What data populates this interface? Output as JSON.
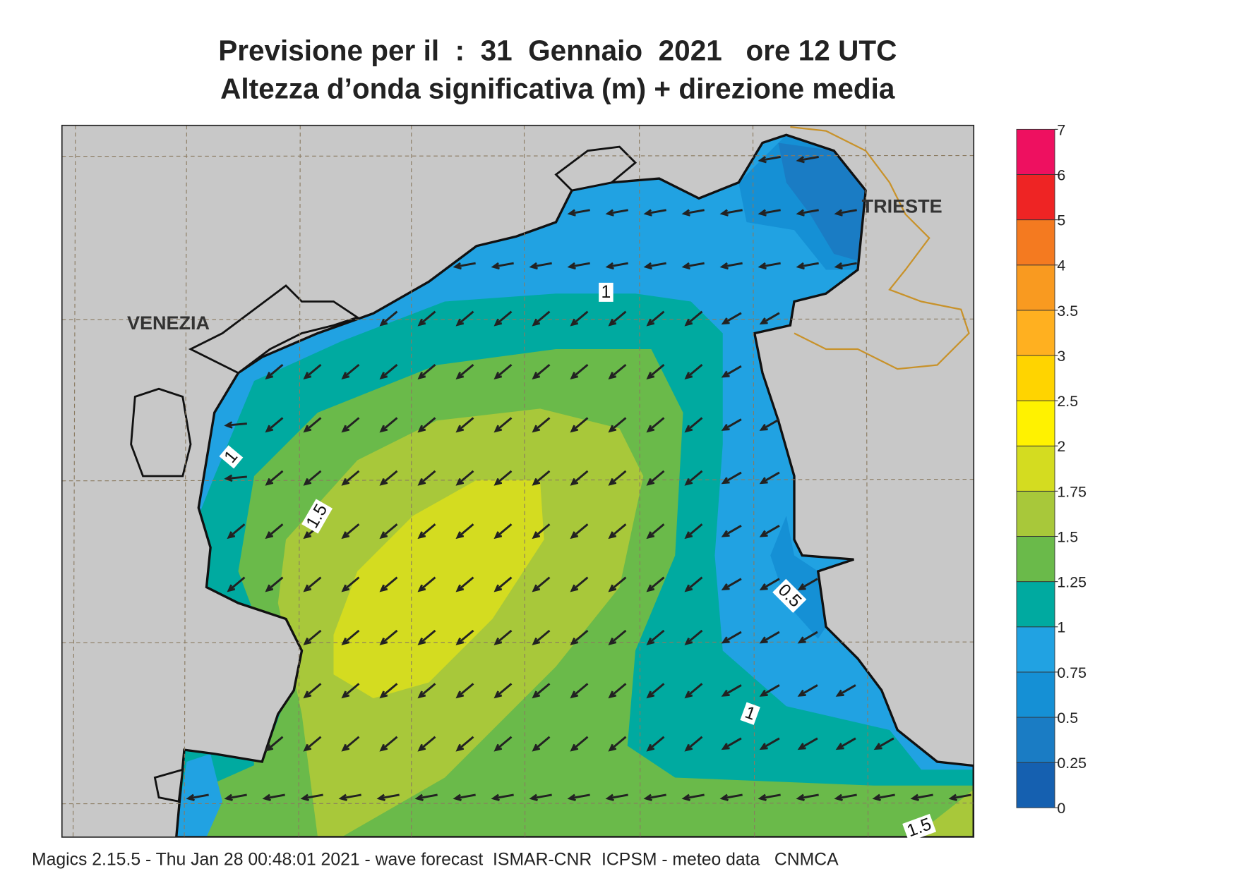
{
  "title": [
    "Previsione per il  :  31  Gennaio  2021   ore 12 UTC",
    "Altezza d’onda significativa (m) + direzione media"
  ],
  "places": [
    "VENEZIA",
    "TRIESTE"
  ],
  "contour_labels": [
    1,
    1,
    1.5,
    0.5,
    1,
    1.5
  ],
  "colorbar": {
    "levels": [
      0,
      0.25,
      0.5,
      0.75,
      1,
      1.25,
      1.5,
      1.75,
      2,
      2.5,
      3,
      3.5,
      4,
      5,
      6,
      7
    ],
    "colors": [
      "#1560b0",
      "#1a7cc4",
      "#1590d5",
      "#21a2e2",
      "#00aaa0",
      "#6aba4a",
      "#a8c83a",
      "#d4dc20",
      "#fff200",
      "#ffd400",
      "#ffb020",
      "#f99a20",
      "#f47a20",
      "#ee2424",
      "#ee1060"
    ]
  },
  "footer": "Magics 2.15.5 - Thu Jan 28 00:48:01 2021 - wave forecast  ISMAR-CNR  ICPSM - meteo data   CNMCA"
}
